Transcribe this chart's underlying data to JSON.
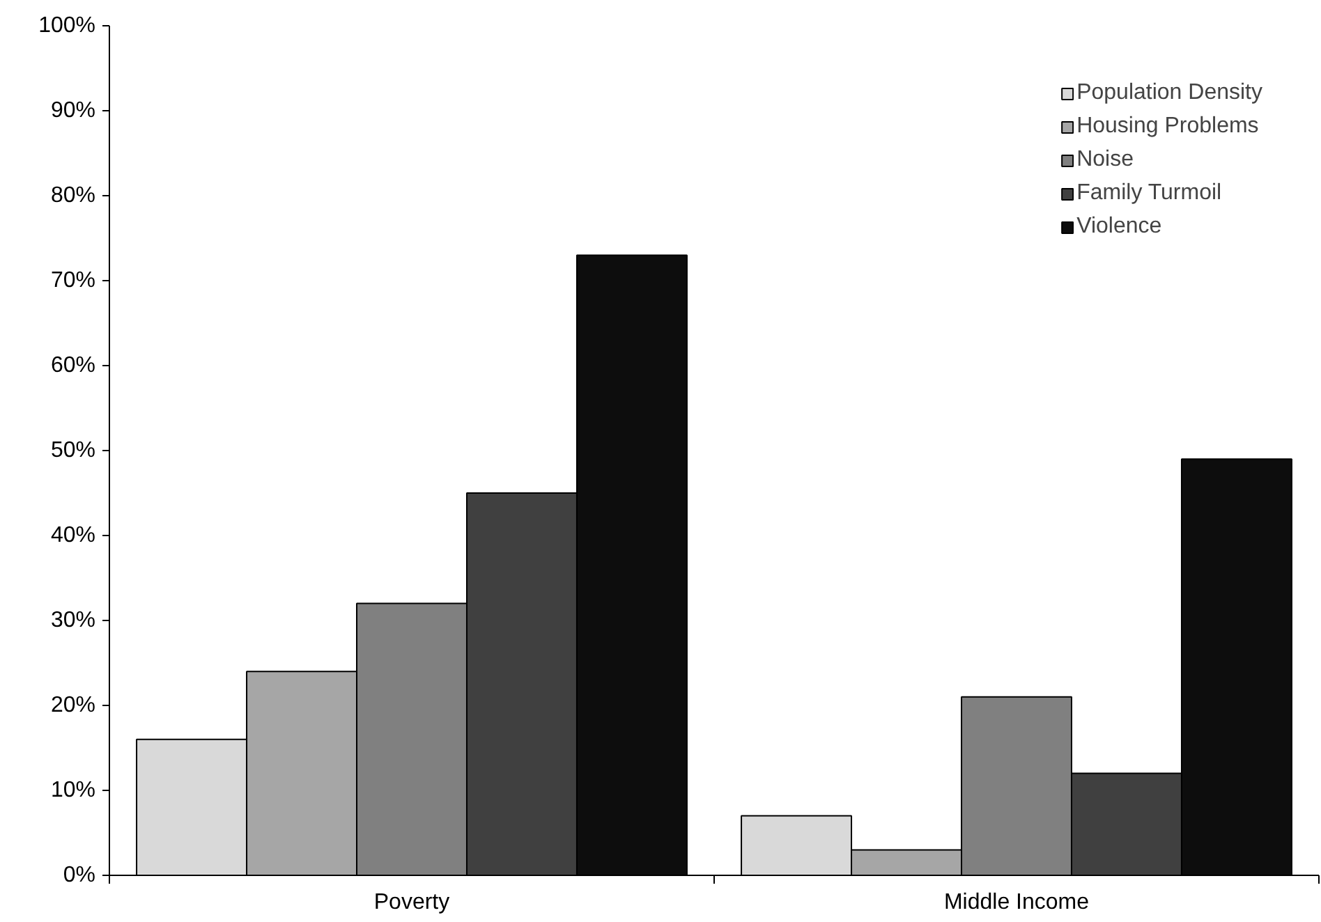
{
  "chart_data": {
    "type": "bar",
    "categories": [
      "Poverty",
      "Middle Income"
    ],
    "series": [
      {
        "name": "Population Density",
        "color": "#d9d9d9",
        "values": [
          16,
          7
        ]
      },
      {
        "name": "Housing Problems",
        "color": "#a6a6a6",
        "values": [
          24,
          3
        ]
      },
      {
        "name": "Noise",
        "color": "#808080",
        "values": [
          32,
          21
        ]
      },
      {
        "name": "Family Turmoil",
        "color": "#404040",
        "values": [
          45,
          12
        ]
      },
      {
        "name": "Violence",
        "color": "#0d0d0d",
        "values": [
          73,
          49
        ]
      }
    ],
    "ylim": [
      0,
      100
    ],
    "yticks": [
      {
        "value": 0,
        "label": "0%"
      },
      {
        "value": 10,
        "label": "10%"
      },
      {
        "value": 20,
        "label": "20%"
      },
      {
        "value": 30,
        "label": "30%"
      },
      {
        "value": 40,
        "label": "40%"
      },
      {
        "value": 50,
        "label": "50%"
      },
      {
        "value": 60,
        "label": "60%"
      },
      {
        "value": 70,
        "label": "70%"
      },
      {
        "value": 80,
        "label": "80%"
      },
      {
        "value": 90,
        "label": "90%"
      },
      {
        "value": 100,
        "label": "100%"
      }
    ],
    "grid": false,
    "legend": "top right"
  }
}
